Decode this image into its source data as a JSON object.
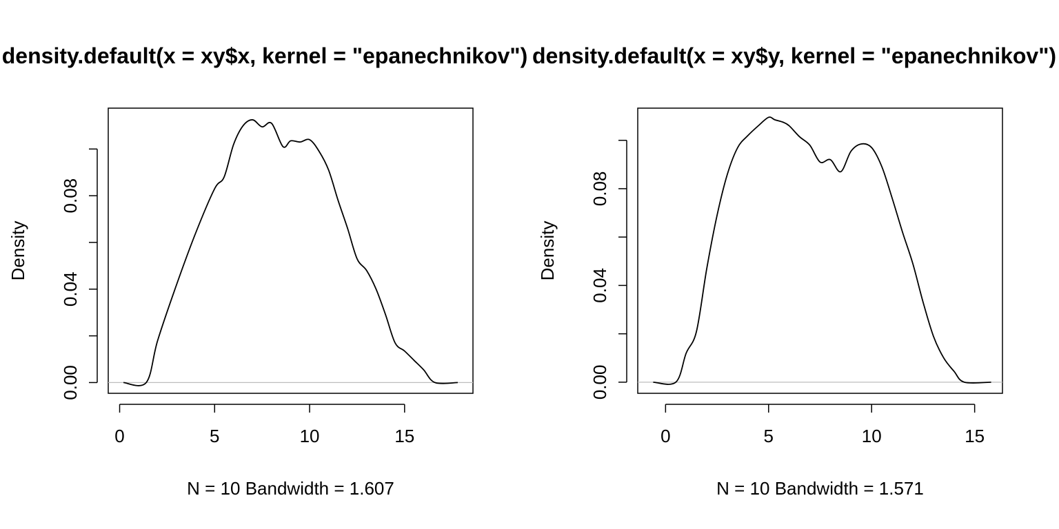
{
  "chart_data": [
    {
      "type": "line",
      "title": "density.default(x = xy$x, kernel = \"epanechnikov\")",
      "xlabel": "N = 10   Bandwidth = 1.607",
      "ylabel": "Density",
      "xlim": [
        -0.6,
        18.6
      ],
      "ylim": [
        -0.0046,
        0.1175
      ],
      "xticks": [
        "0",
        "5",
        "10",
        "15"
      ],
      "xtick_values": [
        0,
        5,
        10,
        15
      ],
      "yticks": [
        "0.00",
        "",
        "0.04",
        "",
        "0.08",
        ""
      ],
      "ytick_values": [
        0,
        0.02,
        0.04,
        0.06,
        0.08,
        0.1
      ],
      "grid": false,
      "series": [
        {
          "x": [
            0.2,
            1.4,
            2.0,
            3.0,
            4.0,
            5.0,
            5.5,
            6.0,
            6.5,
            7.0,
            7.5,
            8.0,
            8.6,
            9.0,
            9.5,
            10.0,
            10.5,
            11.0,
            11.5,
            12.0,
            12.5,
            13.0,
            13.5,
            14.0,
            14.5,
            15.0,
            15.5,
            16.0,
            16.6,
            17.8
          ],
          "y": [
            0,
            0,
            0.018,
            0.042,
            0.064,
            0.083,
            0.088,
            0.102,
            0.11,
            0.1125,
            0.1095,
            0.111,
            0.101,
            0.1035,
            0.103,
            0.104,
            0.099,
            0.091,
            0.078,
            0.066,
            0.053,
            0.048,
            0.04,
            0.029,
            0.017,
            0.0135,
            0.0095,
            0.0055,
            0,
            0
          ]
        }
      ]
    },
    {
      "type": "line",
      "title": "density.default(x = xy$y, kernel = \"epanechnikov\")",
      "xlabel": "N = 10   Bandwidth = 1.571",
      "ylabel": "Density",
      "xlim": [
        -1.35,
        16.35
      ],
      "ylim": [
        -0.0046,
        0.1133
      ],
      "xticks": [
        "0",
        "5",
        "10",
        "15"
      ],
      "xtick_values": [
        0,
        5,
        10,
        15
      ],
      "yticks": [
        "0.00",
        "",
        "0.04",
        "",
        "0.08",
        ""
      ],
      "ytick_values": [
        0,
        0.02,
        0.04,
        0.06,
        0.08,
        0.1
      ],
      "grid": false,
      "series": [
        {
          "x": [
            -0.6,
            0.5,
            1.0,
            1.5,
            2.0,
            2.5,
            3.0,
            3.5,
            4.0,
            4.5,
            5.0,
            5.3,
            5.7,
            6.0,
            6.5,
            7.0,
            7.5,
            8.0,
            8.5,
            9.0,
            9.5,
            10.0,
            10.5,
            11.0,
            11.5,
            12.0,
            12.5,
            13.0,
            13.5,
            14.0,
            14.5,
            15.8
          ],
          "y": [
            0,
            0,
            0.012,
            0.021,
            0.047,
            0.069,
            0.086,
            0.097,
            0.102,
            0.106,
            0.1095,
            0.1085,
            0.1075,
            0.106,
            0.1015,
            0.098,
            0.091,
            0.092,
            0.087,
            0.0955,
            0.0985,
            0.097,
            0.089,
            0.076,
            0.062,
            0.049,
            0.033,
            0.019,
            0.01,
            0.0045,
            0,
            0
          ]
        }
      ]
    }
  ]
}
